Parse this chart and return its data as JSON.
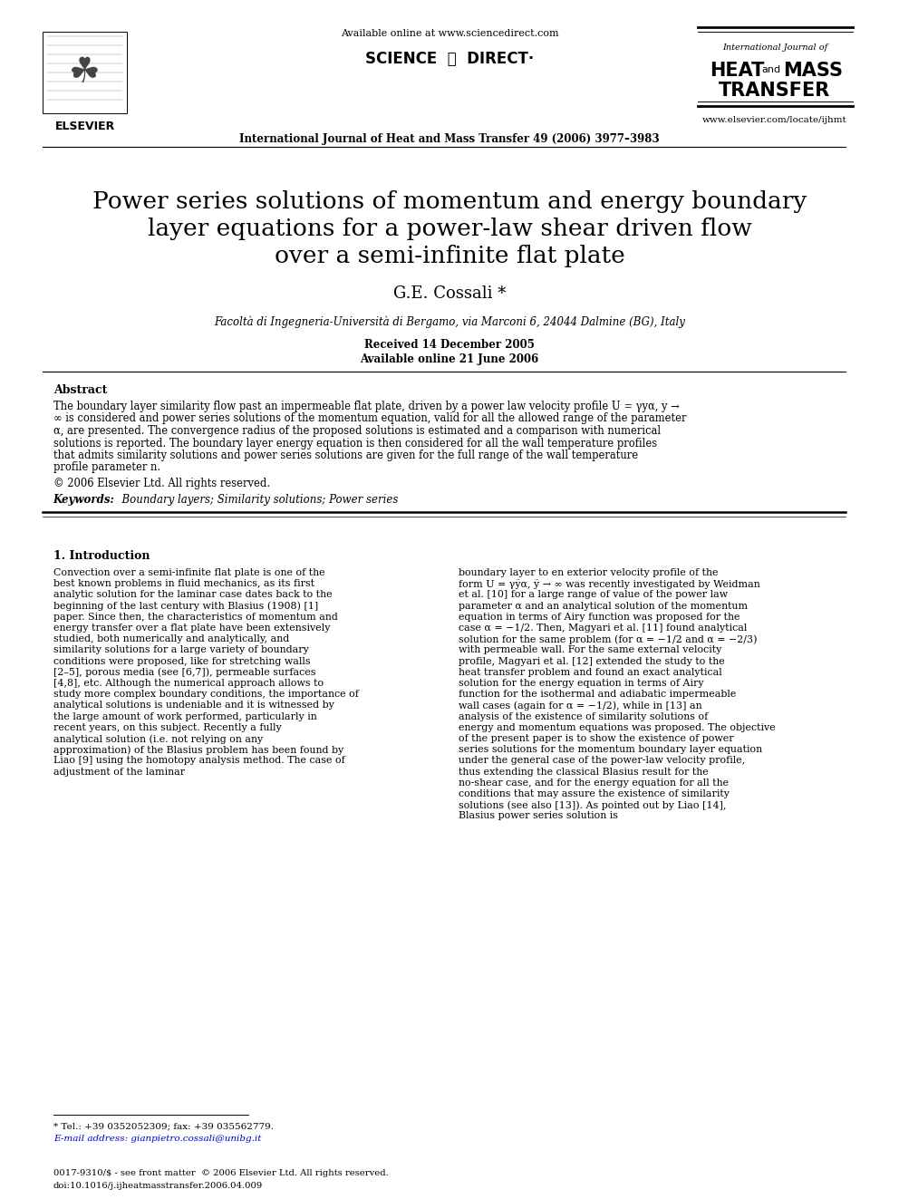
{
  "bg_color": "#ffffff",
  "header_available_online": "Available online at www.sciencedirect.com",
  "header_journal_line": "International Journal of Heat and Mass Transfer 49 (2006) 3977–3983",
  "header_journal_name_line1": "International Journal of",
  "header_url": "www.elsevier.com/locate/ijhmt",
  "elsevier_label": "ELSEVIER",
  "title_line1": "Power series solutions of momentum and energy boundary",
  "title_line2": "layer equations for a power-law shear driven flow",
  "title_line3": "over a semi-infinite flat plate",
  "author": "G.E. Cossali *",
  "affiliation": "Facoltà di Ingegneria-Università di Bergamo, via Marconi 6, 24044 Dalmine (BG), Italy",
  "received": "Received 14 December 2005",
  "available": "Available online 21 June 2006",
  "abstract_title": "Abstract",
  "abstract_text": "The boundary layer similarity flow past an impermeable flat plate, driven by a power law velocity profile U = γyα, y → ∞ is considered and power series solutions of the momentum equation, valid for all the allowed range of the parameter α, are presented. The convergence radius of the proposed solutions is estimated and a comparison with numerical solutions is reported. The boundary layer energy equation is then considered for all the wall temperature profiles that admits similarity solutions and power series solutions are given for the full range of the wall temperature profile parameter n.",
  "copyright": "© 2006 Elsevier Ltd. All rights reserved.",
  "keywords_label": "Keywords:",
  "keywords_text": "  Boundary layers; Similarity solutions; Power series",
  "section1_title": "1. Introduction",
  "intro_col1_para1": "    Convection over a semi-infinite flat plate is one of the best known problems in fluid mechanics, as its first analytic solution for the laminar case dates back to the beginning of the last century with Blasius (1908) [1] paper. Since then, the characteristics of momentum and energy transfer over a flat plate have been extensively studied, both numerically and analytically, and similarity solutions for a large variety of boundary conditions were proposed, like for stretching walls [2–5], porous media (see [6,7]), permeable surfaces [4,8], etc. Although the numerical approach allows to study more complex boundary conditions, the importance of analytical solutions is undeniable and it is witnessed by the large amount of work performed, particularly in recent years, on this subject. Recently a fully analytical solution (i.e. not relying on any approximation) of the Blasius problem has been found by Liao [9] using the homotopy analysis method. The case of adjustment of the laminar",
  "intro_col2_para1": "boundary layer to en exterior velocity profile of the form U = γỹα, ỹ → ∞ was recently investigated by Weidman et al. [10] for a large range of value of the power law parameter α and an analytical solution of the momentum equation in terms of Airy function was proposed for the case α = −1/2. Then, Magyari et al. [11] found analytical solution for the same problem (for α = −1/2 and α = −2/3) with permeable wall. For the same external velocity profile, Magyari et al. [12] extended the study to the heat transfer problem and found an exact analytical solution for the energy equation in terms of Airy function for the isothermal and adiabatic impermeable wall cases (again for α = −1/2), while in [13] an analysis of the existence of similarity solutions of energy and momentum equations was proposed. The objective of the present paper is to show the existence of power series solutions for the momentum boundary layer equation under the general case of the power-law velocity profile, thus extending the classical Blasius result for the no-shear case, and for the energy equation for all the conditions that may assure the existence of similarity solutions (see also [13]). As pointed out by Liao [14], Blasius power series solution is",
  "footnote_tel": "* Tel.: +39 0352052309; fax: +39 035562779.",
  "footnote_email": "E-mail address: gianpietro.cossali@unibg.it",
  "footer_issn": "0017-9310/$ - see front matter  © 2006 Elsevier Ltd. All rights reserved.",
  "footer_doi": "doi:10.1016/j.ijheatmasstransfer.2006.04.009"
}
